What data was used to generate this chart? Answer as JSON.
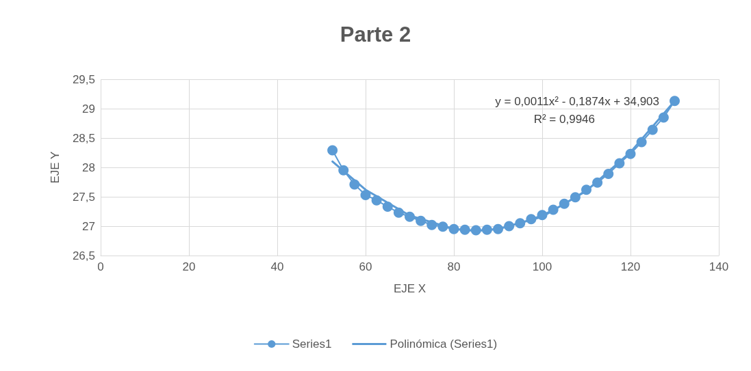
{
  "chart_data": {
    "type": "line",
    "title": "Parte 2",
    "xlabel": "EJE X",
    "ylabel": "EJE Y",
    "xlim": [
      0,
      140
    ],
    "xticks": [
      0,
      20,
      40,
      60,
      80,
      100,
      120,
      140
    ],
    "ylim": [
      26.5,
      29.5
    ],
    "yticks": [
      {
        "value": 26.5,
        "label": "26,5"
      },
      {
        "value": 27,
        "label": "27"
      },
      {
        "value": 27.5,
        "label": "27,5"
      },
      {
        "value": 28,
        "label": "28"
      },
      {
        "value": 28.5,
        "label": "28,5"
      },
      {
        "value": 29,
        "label": "29"
      },
      {
        "value": 29.5,
        "label": "29,5"
      }
    ],
    "grid": true,
    "legend": "bottom",
    "marker": "circle",
    "line_style": "solid",
    "annotations": [
      "y = 0,0011x² - 0,1874x + 34,903",
      "R² = 0,9946"
    ],
    "series": [
      {
        "name": "Series1",
        "color": "#5b9bd5",
        "x": [
          52.5,
          55,
          57.5,
          60,
          62.5,
          65,
          67.5,
          70,
          72.5,
          75,
          77.5,
          80,
          82.5,
          85,
          87.5,
          90,
          92.5,
          95,
          97.5,
          100,
          102.5,
          105,
          107.5,
          110,
          112.5,
          115,
          117.5,
          120,
          122.5,
          125,
          127.5,
          130
        ],
        "values": [
          28.29,
          27.95,
          27.71,
          27.53,
          27.44,
          27.33,
          27.23,
          27.16,
          27.09,
          27.02,
          26.99,
          26.95,
          26.94,
          26.93,
          26.94,
          26.95,
          27.0,
          27.05,
          27.12,
          27.19,
          27.28,
          27.38,
          27.49,
          27.62,
          27.74,
          27.89,
          28.07,
          28.23,
          28.43,
          28.64,
          28.85,
          29.13
        ]
      },
      {
        "name": "Polinómica (Series1)",
        "marker": "none",
        "color": "#5b9bd5",
        "x": [
          52.5,
          60,
          70,
          80,
          85,
          90,
          100,
          110,
          120,
          130
        ],
        "values": [
          28.1,
          27.62,
          27.18,
          26.95,
          26.92,
          26.95,
          27.16,
          27.6,
          28.26,
          29.13
        ]
      }
    ]
  }
}
